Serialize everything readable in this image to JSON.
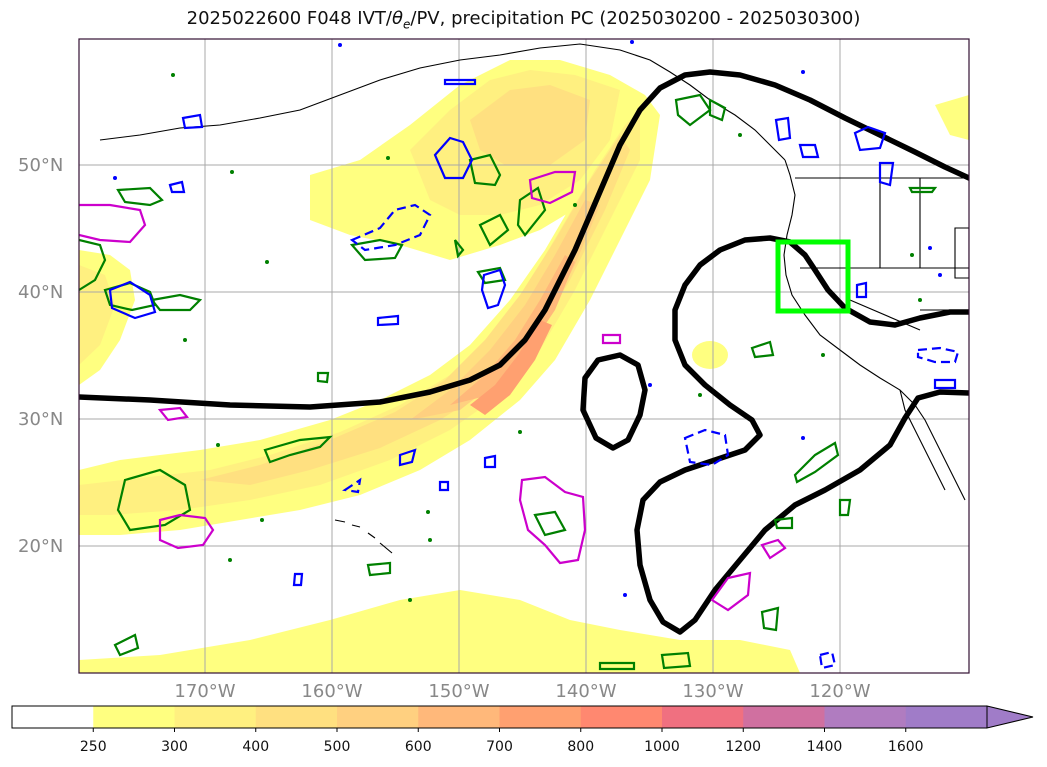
{
  "title": {
    "main": "2025022600 F048 IVT/",
    "theta": "θ",
    "sub": "e",
    "rest": "/PV, precipitation PC (2025030200 - 2025030300)"
  },
  "map": {
    "lat_labels": [
      "50°N",
      "40°N",
      "30°N",
      "20°N"
    ],
    "lon_labels": [
      "170°W",
      "160°W",
      "150°W",
      "140°W",
      "130°W",
      "120°W"
    ],
    "highlight_box_color": "#00ff00",
    "contour_colors": {
      "pc_line": "#000000",
      "green": "#008000",
      "blue": "#0000ff",
      "magenta": "#cc00cc"
    }
  },
  "colorbar": {
    "ticks": [
      "250",
      "300",
      "400",
      "500",
      "600",
      "700",
      "800",
      "1000",
      "1200",
      "1400",
      "1600"
    ],
    "colors": [
      "#ffffff",
      "#ffff80",
      "#fff080",
      "#ffe080",
      "#ffd080",
      "#ffb87a",
      "#ffa070",
      "#ff8870",
      "#f07080",
      "#d070a0",
      "#b07cc0",
      "#a07cc8"
    ]
  }
}
